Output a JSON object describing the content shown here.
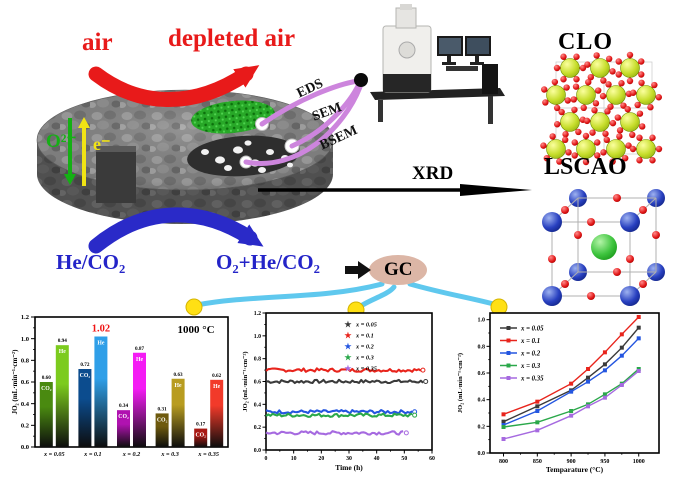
{
  "schematic": {
    "air": "air",
    "depleted_air": "depleted air",
    "oxygen_ion": "O²⁻",
    "electron": "e⁻",
    "probe_labels": {
      "eds": "EDS",
      "sem": "SEM",
      "bsem": "BSEM"
    },
    "xrd": "XRD",
    "clo": "CLO",
    "lscao": "LSCAO",
    "feed_gas": "He/CO₂",
    "permeate_gas": "O₂+He/CO₂",
    "gc": "GC"
  },
  "colors": {
    "accent_red": "#e81a1a",
    "accent_blue": "#2424c8",
    "probe_line_purple": "#cd85dd",
    "connector_cyan": "#5fc8ee",
    "dot_yellow": "#ffe014",
    "gc_fill": "#dcb6a6"
  },
  "chart_data": [
    {
      "type": "bar",
      "annotation": "1000 °C",
      "ylabel": "JO₂ (mL·min⁻¹·cm⁻²)",
      "ylim": [
        0,
        1.2
      ],
      "yticks": [
        0.0,
        0.2,
        0.4,
        0.6,
        0.8,
        1.0,
        1.2
      ],
      "categories": [
        "x = 0.05",
        "x = 0.1",
        "x = 0.2",
        "x = 0.3",
        "x = 0.35"
      ],
      "series": [
        {
          "name": "CO₂",
          "values": [
            0.6,
            0.72,
            0.34,
            0.31,
            0.17
          ],
          "colors": [
            "#4a8a10",
            "#0c4c8e",
            "#b012b0",
            "#6e5a0e",
            "#a81812"
          ]
        },
        {
          "name": "He",
          "values": [
            0.94,
            1.02,
            0.87,
            0.63,
            0.62
          ],
          "colors": [
            "#7ccb1e",
            "#2f9fe8",
            "#f41cf4",
            "#b89c20",
            "#f23a2a"
          ]
        }
      ],
      "highlight_value": 1.02,
      "highlight_color": "#f01414",
      "legend_position": "none",
      "grid": false
    },
    {
      "type": "line",
      "xlabel": "Time (h)",
      "ylabel": "JO₂ (mL·min⁻¹·cm⁻²)",
      "xlim": [
        0,
        60
      ],
      "ylim": [
        0,
        1.2
      ],
      "xticks": [
        0,
        10,
        20,
        30,
        40,
        50,
        60
      ],
      "yticks": [
        0.0,
        0.2,
        0.4,
        0.6,
        0.8,
        1.0,
        1.2
      ],
      "legend_position": "top-right",
      "grid": false,
      "series": [
        {
          "name": "x = 0.05",
          "color": "#3a3a3a",
          "value": 0.6,
          "x_end": 57
        },
        {
          "name": "x = 0.1",
          "color": "#e8241c",
          "value": 0.7,
          "x_end": 56
        },
        {
          "name": "x = 0.2",
          "color": "#2456e0",
          "value": 0.335,
          "x_end": 53
        },
        {
          "name": "x = 0.3",
          "color": "#2aa84a",
          "value": 0.305,
          "x_end": 53
        },
        {
          "name": "x = 0.35",
          "color": "#a66ae0",
          "value": 0.15,
          "x_end": 50
        }
      ]
    },
    {
      "type": "line",
      "xlabel": "Temparature (°C)",
      "ylabel": "JO₂ (mL·min⁻¹·cm⁻²)",
      "x": [
        800,
        850,
        900,
        925,
        950,
        975,
        1000
      ],
      "xticks": [
        800,
        850,
        900,
        950,
        1000
      ],
      "yticks": [
        0.0,
        0.2,
        0.4,
        0.6,
        0.8,
        1.0
      ],
      "ylim": [
        0,
        1.05
      ],
      "legend_position": "top-left",
      "grid": false,
      "series": [
        {
          "name": "x = 0.05",
          "color": "#3a3a3a",
          "values": [
            0.235,
            0.35,
            0.47,
            0.565,
            0.665,
            0.79,
            0.94
          ]
        },
        {
          "name": "x = 0.1",
          "color": "#e8241c",
          "values": [
            0.29,
            0.385,
            0.52,
            0.63,
            0.755,
            0.89,
            1.02
          ]
        },
        {
          "name": "x = 0.2",
          "color": "#2456e0",
          "values": [
            0.21,
            0.315,
            0.46,
            0.535,
            0.62,
            0.73,
            0.86
          ]
        },
        {
          "name": "x = 0.3",
          "color": "#2aa84a",
          "values": [
            0.195,
            0.23,
            0.315,
            0.365,
            0.44,
            0.52,
            0.63
          ]
        },
        {
          "name": "x = 0.35",
          "color": "#a66ae0",
          "values": [
            0.105,
            0.17,
            0.28,
            0.35,
            0.415,
            0.51,
            0.615
          ]
        }
      ]
    }
  ]
}
